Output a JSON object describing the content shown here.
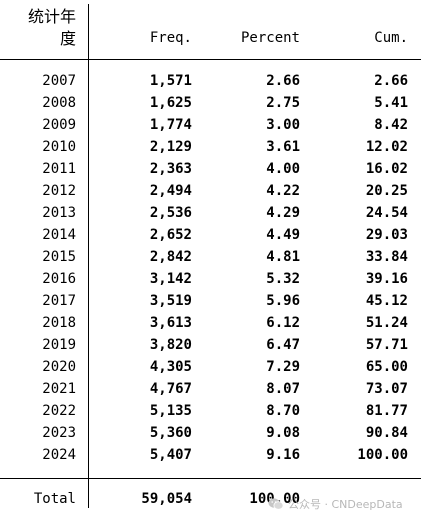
{
  "header": {
    "col1_line1": "统计年",
    "col1_line2": "度",
    "freq": "Freq.",
    "percent": "Percent",
    "cum": "Cum."
  },
  "rows": [
    {
      "year": "2007",
      "freq": "1,571",
      "percent": "2.66",
      "cum": "2.66"
    },
    {
      "year": "2008",
      "freq": "1,625",
      "percent": "2.75",
      "cum": "5.41"
    },
    {
      "year": "2009",
      "freq": "1,774",
      "percent": "3.00",
      "cum": "8.42"
    },
    {
      "year": "2010",
      "freq": "2,129",
      "percent": "3.61",
      "cum": "12.02"
    },
    {
      "year": "2011",
      "freq": "2,363",
      "percent": "4.00",
      "cum": "16.02"
    },
    {
      "year": "2012",
      "freq": "2,494",
      "percent": "4.22",
      "cum": "20.25"
    },
    {
      "year": "2013",
      "freq": "2,536",
      "percent": "4.29",
      "cum": "24.54"
    },
    {
      "year": "2014",
      "freq": "2,652",
      "percent": "4.49",
      "cum": "29.03"
    },
    {
      "year": "2015",
      "freq": "2,842",
      "percent": "4.81",
      "cum": "33.84"
    },
    {
      "year": "2016",
      "freq": "3,142",
      "percent": "5.32",
      "cum": "39.16"
    },
    {
      "year": "2017",
      "freq": "3,519",
      "percent": "5.96",
      "cum": "45.12"
    },
    {
      "year": "2018",
      "freq": "3,613",
      "percent": "6.12",
      "cum": "51.24"
    },
    {
      "year": "2019",
      "freq": "3,820",
      "percent": "6.47",
      "cum": "57.71"
    },
    {
      "year": "2020",
      "freq": "4,305",
      "percent": "7.29",
      "cum": "65.00"
    },
    {
      "year": "2021",
      "freq": "4,767",
      "percent": "8.07",
      "cum": "73.07"
    },
    {
      "year": "2022",
      "freq": "5,135",
      "percent": "8.70",
      "cum": "81.77"
    },
    {
      "year": "2023",
      "freq": "5,360",
      "percent": "9.08",
      "cum": "90.84"
    },
    {
      "year": "2024",
      "freq": "5,407",
      "percent": "9.16",
      "cum": "100.00"
    }
  ],
  "total": {
    "label": "Total",
    "freq": "59,054",
    "percent": "100.00"
  },
  "watermark": {
    "text": "公众号 · CNDeepData",
    "icon": "wechat-icon"
  }
}
